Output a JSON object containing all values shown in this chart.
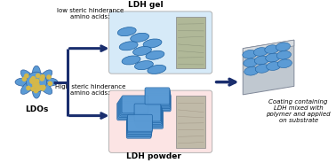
{
  "bg_color": "#ffffff",
  "ldo_color": "#5b9bd5",
  "ldo_dot_color": "#d4b84a",
  "arrow_color": "#1a2e6e",
  "top_box_color": "#d6eaf8",
  "bottom_box_color": "#fce4e4",
  "top_label": "LDH gel",
  "bottom_label": "LDH powder",
  "top_text": "low steric hinderance\namino acids:",
  "bottom_text": "High steric hinderance\namino acids:",
  "right_label": "Coating containing\nLDH mixed with\npolymer and applied\non substrate",
  "nanoplatelet_color": "#5b9bd5",
  "nanoplatelet_edge": "#1a5fa0",
  "photo_top_color": "#b8c8a8",
  "photo_bot_color": "#c8c0b0"
}
